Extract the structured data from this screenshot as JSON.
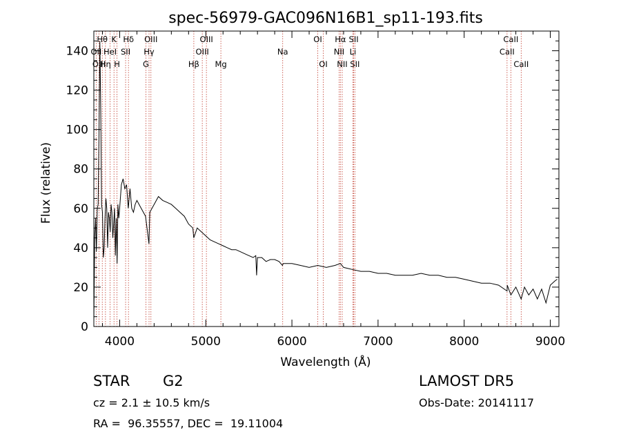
{
  "chart_data": {
    "type": "line",
    "title": "spec-56979-GAC096N16B1_sp11-193.fits",
    "xlabel": "Wavelength (Å)",
    "ylabel": "Flux (relative)",
    "xlim": [
      3700,
      9100
    ],
    "ylim": [
      0,
      150
    ],
    "xticks": [
      4000,
      5000,
      6000,
      7000,
      8000,
      9000
    ],
    "yticks": [
      0,
      20,
      40,
      60,
      80,
      100,
      120,
      140
    ],
    "grid": false,
    "series": [
      {
        "x": [
          3700,
          3710,
          3720,
          3730,
          3740,
          3750,
          3760,
          3770,
          3780,
          3790,
          3800,
          3810,
          3820,
          3830,
          3840,
          3850,
          3860,
          3870,
          3880,
          3890,
          3900,
          3910,
          3920,
          3930,
          3940,
          3950,
          3960,
          3970,
          3980,
          3990,
          4000,
          4020,
          4040,
          4060,
          4080,
          4100,
          4120,
          4140,
          4160,
          4180,
          4200,
          4250,
          4300,
          4340,
          4350,
          4400,
          4450,
          4500,
          4550,
          4600,
          4650,
          4700,
          4750,
          4800,
          4850,
          4860,
          4900,
          4950,
          5000,
          5050,
          5100,
          5150,
          5200,
          5250,
          5300,
          5350,
          5400,
          5450,
          5500,
          5550,
          5580,
          5590,
          5600,
          5650,
          5700,
          5750,
          5800,
          5850,
          5890,
          5900,
          5950,
          6000,
          6100,
          6200,
          6300,
          6400,
          6500,
          6563,
          6600,
          6700,
          6800,
          6900,
          7000,
          7100,
          7200,
          7300,
          7400,
          7500,
          7600,
          7700,
          7800,
          7900,
          8000,
          8100,
          8200,
          8300,
          8400,
          8498,
          8500,
          8542,
          8600,
          8662,
          8700,
          8750,
          8800,
          8850,
          8900,
          8950,
          9000,
          9050,
          9080
        ],
        "y": [
          2,
          45,
          55,
          38,
          60,
          62,
          98,
          145,
          110,
          62,
          58,
          35,
          40,
          55,
          65,
          60,
          40,
          58,
          55,
          48,
          62,
          58,
          45,
          52,
          60,
          36,
          55,
          32,
          62,
          55,
          60,
          72,
          75,
          70,
          72,
          60,
          70,
          60,
          58,
          62,
          64,
          60,
          56,
          42,
          58,
          62,
          66,
          64,
          63,
          62,
          60,
          58,
          56,
          52,
          50,
          45,
          50,
          48,
          46,
          44,
          43,
          42,
          41,
          40,
          39,
          39,
          38,
          37,
          36,
          35,
          36,
          26,
          35,
          35,
          33,
          34,
          34,
          33,
          31,
          32,
          32,
          32,
          31,
          30,
          31,
          30,
          31,
          32,
          30,
          29,
          28,
          28,
          27,
          27,
          26,
          26,
          26,
          27,
          26,
          26,
          25,
          25,
          24,
          23,
          22,
          22,
          21,
          18,
          21,
          16,
          20,
          14,
          20,
          16,
          19,
          14,
          19,
          12,
          21,
          23,
          24
        ]
      }
    ],
    "lines": [
      {
        "label": "Hθ",
        "x": 3798,
        "row": 0
      },
      {
        "label": "OII",
        "x": 3727,
        "row": 1
      },
      {
        "label": "OIII",
        "x": 3760,
        "row": 2
      },
      {
        "label": "Hη",
        "x": 3835,
        "row": 2
      },
      {
        "label": "HeI",
        "x": 3889,
        "row": 1
      },
      {
        "label": "K",
        "x": 3934,
        "row": 0
      },
      {
        "label": "H",
        "x": 3969,
        "row": 2
      },
      {
        "label": "Hδ",
        "x": 4102,
        "row": 0
      },
      {
        "label": "SII",
        "x": 4069,
        "row": 1
      },
      {
        "label": "OIII",
        "x": 4363,
        "row": 0
      },
      {
        "label": "Hγ",
        "x": 4341,
        "row": 1
      },
      {
        "label": "G",
        "x": 4305,
        "row": 2
      },
      {
        "label": "Hβ",
        "x": 4861,
        "row": 2
      },
      {
        "label": "OIII",
        "x": 5007,
        "row": 0
      },
      {
        "label": "OIII",
        "x": 4959,
        "row": 1
      },
      {
        "label": "Mg",
        "x": 5175,
        "row": 2
      },
      {
        "label": "Na",
        "x": 5893,
        "row": 1
      },
      {
        "label": "OI",
        "x": 6300,
        "row": 0
      },
      {
        "label": "OI",
        "x": 6364,
        "row": 2
      },
      {
        "label": "Hα",
        "x": 6563,
        "row": 0
      },
      {
        "label": "NII",
        "x": 6548,
        "row": 1
      },
      {
        "label": "NII",
        "x": 6584,
        "row": 2
      },
      {
        "label": "SII",
        "x": 6717,
        "row": 0
      },
      {
        "label": "Li",
        "x": 6708,
        "row": 1
      },
      {
        "label": "SII",
        "x": 6731,
        "row": 2
      },
      {
        "label": "CaII",
        "x": 8542,
        "row": 0
      },
      {
        "label": "CaII",
        "x": 8498,
        "row": 1
      },
      {
        "label": "CaII",
        "x": 8662,
        "row": 2
      }
    ]
  },
  "footer": {
    "obj_class": "STAR",
    "subclass": "G2",
    "cz": "cz = 2.1 ± 10.5 km/s",
    "radec": "RA =  96.35557, DEC =  19.11004",
    "survey": "LAMOST DR5",
    "obs_date": "Obs-Date: 20141117"
  }
}
